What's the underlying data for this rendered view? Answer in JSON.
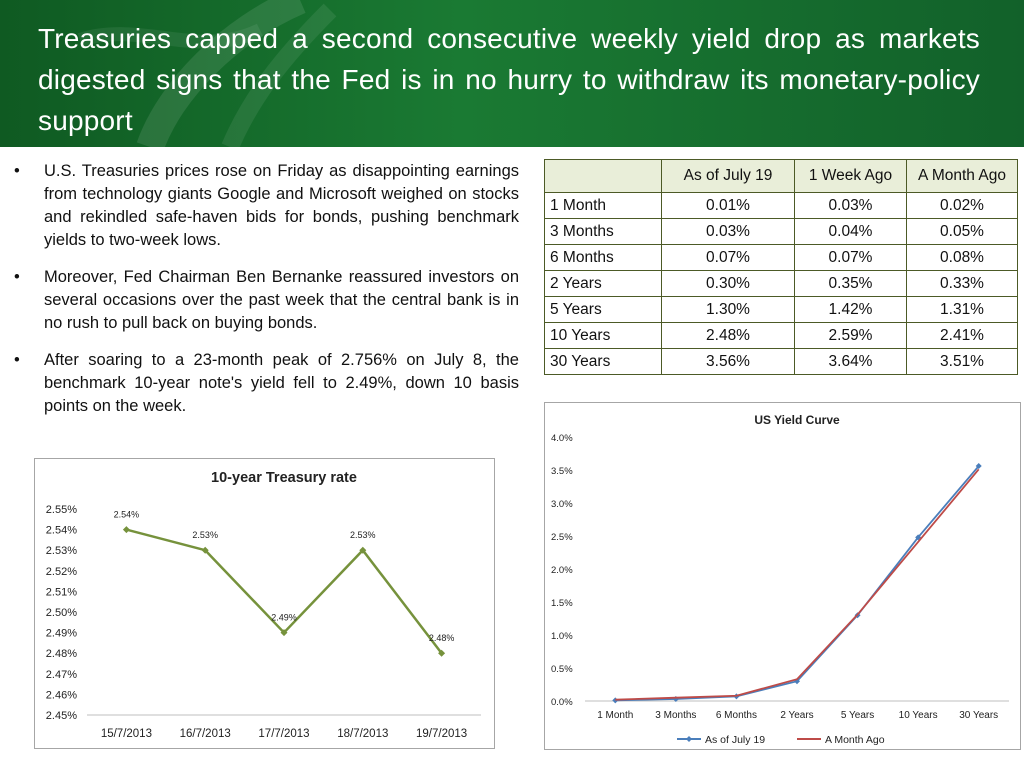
{
  "slide": {
    "title": "Treasuries capped a second consecutive weekly yield drop as markets digested signs that the Fed is in no hurry to withdraw its monetary-policy support",
    "accent_color": "#1a7a33",
    "bullet_symbol": "•",
    "bullets": [
      "U.S. Treasuries prices rose on Friday as disappointing earnings from technology giants Google and Microsoft weighed on stocks and rekindled safe-haven bids for bonds, pushing benchmark yields to two-week lows.",
      "Moreover, Fed Chairman Ben Bernanke reassured investors on several occasions over the past week that the central bank is in no rush to pull back on buying bonds.",
      "After soaring to a 23-month peak of 2.756% on July 8, the benchmark 10-year note's yield fell to 2.49%, down 10 basis points on the week."
    ]
  },
  "table": {
    "headers": [
      "",
      "As of July 19",
      "1 Week Ago",
      "A Month Ago"
    ],
    "rows": [
      [
        "1 Month",
        "0.01%",
        "0.03%",
        "0.02%"
      ],
      [
        "3 Months",
        "0.03%",
        "0.04%",
        "0.05%"
      ],
      [
        "6 Months",
        "0.07%",
        "0.07%",
        "0.08%"
      ],
      [
        "2 Years",
        "0.30%",
        "0.35%",
        "0.33%"
      ],
      [
        "5 Years",
        "1.30%",
        "1.42%",
        "1.31%"
      ],
      [
        "10 Years",
        "2.48%",
        "2.59%",
        "2.41%"
      ],
      [
        "30 Years",
        "3.56%",
        "3.64%",
        "3.51%"
      ]
    ],
    "header_bg": "#e9eed9",
    "border_color": "#4c5a26"
  },
  "chart_data": [
    {
      "type": "line",
      "title": "10-year Treasury rate",
      "categories": [
        "15/7/2013",
        "16/7/2013",
        "17/7/2013",
        "18/7/2013",
        "19/7/2013"
      ],
      "series": [
        {
          "values": [
            2.54,
            2.53,
            2.49,
            2.53,
            2.48
          ],
          "color": "#76923c"
        }
      ],
      "data_labels": [
        "2.54%",
        "2.53%",
        "2.49%",
        "2.53%",
        "2.48%"
      ],
      "ylim": [
        2.45,
        2.55
      ],
      "y_ticks": [
        "2.45%",
        "2.46%",
        "2.47%",
        "2.48%",
        "2.49%",
        "2.50%",
        "2.51%",
        "2.52%",
        "2.53%",
        "2.54%",
        "2.55%"
      ],
      "grid": false,
      "legend": "none"
    },
    {
      "type": "line",
      "title": "US Yield Curve",
      "categories": [
        "1 Month",
        "3 Months",
        "6 Months",
        "2 Years",
        "5 Years",
        "10 Years",
        "30 Years"
      ],
      "series": [
        {
          "name": "As of July 19",
          "values": [
            0.01,
            0.03,
            0.07,
            0.3,
            1.3,
            2.48,
            3.56
          ],
          "color": "#4a7ebb",
          "marker": "diamond"
        },
        {
          "name": "A Month Ago",
          "values": [
            0.02,
            0.05,
            0.08,
            0.33,
            1.31,
            2.41,
            3.51
          ],
          "color": "#be4b48",
          "marker": "none"
        }
      ],
      "ylim": [
        0,
        4.0
      ],
      "y_ticks": [
        "0.0%",
        "0.5%",
        "1.0%",
        "1.5%",
        "2.0%",
        "2.5%",
        "3.0%",
        "3.5%",
        "4.0%"
      ],
      "grid": false,
      "legend": "bottom"
    }
  ]
}
